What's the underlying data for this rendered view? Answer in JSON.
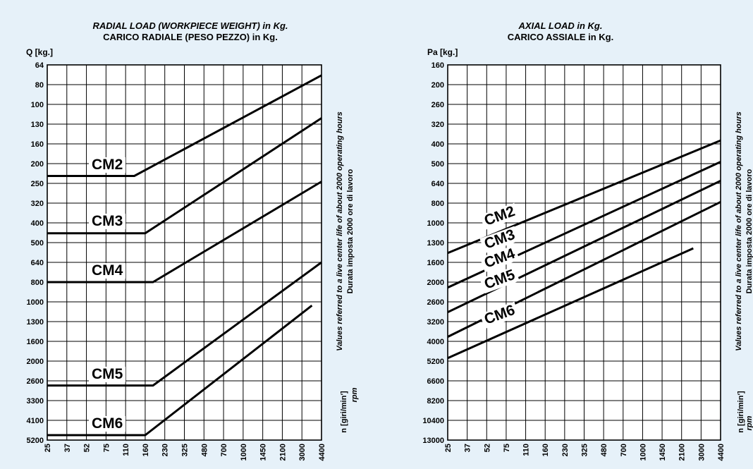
{
  "chart_data": [
    {
      "type": "line",
      "title": "RADIAL LOAD (WORKPIECE WEIGHT) in Kg.",
      "subtitle": "CARICO RADIALE (PESO PEZZO) in Kg.",
      "ylabel": "Q [kg.]",
      "y_ticks": [
        "64",
        "80",
        "100",
        "130",
        "160",
        "200",
        "250",
        "320",
        "400",
        "500",
        "640",
        "800",
        "1000",
        "1300",
        "1600",
        "2000",
        "2600",
        "3300",
        "4100",
        "5200"
      ],
      "x_ticks": [
        "25",
        "37",
        "52",
        "75",
        "110",
        "160",
        "230",
        "325",
        "480",
        "700",
        "1000",
        "1450",
        "2100",
        "3000",
        "4400"
      ],
      "side_note": [
        "Values referred to a live center life of about 2000 operating hours",
        "Durata imposta 2000 ore di lavoro"
      ],
      "rpm_label": [
        "n [giri/min']",
        "rpm"
      ],
      "series": [
        {
          "name": "CM2",
          "points": [
            [
              25,
              230
            ],
            [
              130,
              230
            ],
            [
              4400,
              72
            ]
          ]
        },
        {
          "name": "CM3",
          "points": [
            [
              25,
              450
            ],
            [
              160,
              450
            ],
            [
              4400,
              120
            ]
          ]
        },
        {
          "name": "CM4",
          "points": [
            [
              25,
              800
            ],
            [
              185,
              800
            ],
            [
              4400,
              245
            ]
          ]
        },
        {
          "name": "CM5",
          "points": [
            [
              25,
              2750
            ],
            [
              185,
              2750
            ],
            [
              4400,
              640
            ]
          ]
        },
        {
          "name": "CM6",
          "points": [
            [
              25,
              4900
            ],
            [
              160,
              4900
            ],
            [
              3650,
              1050
            ]
          ]
        }
      ]
    },
    {
      "type": "line",
      "title": "AXIAL LOAD in Kg.",
      "subtitle": "CARICO ASSIALE in Kg.",
      "ylabel": "Pa [kg.]",
      "y_ticks": [
        "160",
        "200",
        "260",
        "320",
        "400",
        "500",
        "640",
        "800",
        "1000",
        "1300",
        "1600",
        "2000",
        "2600",
        "3200",
        "4000",
        "5200",
        "6600",
        "8200",
        "10400",
        "13000"
      ],
      "x_ticks": [
        "25",
        "37",
        "52",
        "75",
        "110",
        "160",
        "230",
        "325",
        "480",
        "700",
        "1000",
        "1450",
        "2100",
        "3000",
        "4400"
      ],
      "side_note": [
        "Values referred to a live center life of about 2000 operating hours",
        "Durata imposta 2000 ore di lavoro"
      ],
      "rpm_label": [
        "n [giri/min']",
        "rpm"
      ],
      "series": [
        {
          "name": "CM2",
          "points": [
            [
              25,
              1450
            ],
            [
              4400,
              385
            ]
          ]
        },
        {
          "name": "CM3",
          "points": [
            [
              25,
              2150
            ],
            [
              4400,
              490
            ]
          ]
        },
        {
          "name": "CM4",
          "points": [
            [
              25,
              2900
            ],
            [
              4400,
              620
            ]
          ]
        },
        {
          "name": "CM5",
          "points": [
            [
              25,
              3800
            ],
            [
              4400,
              790
            ]
          ]
        },
        {
          "name": "CM6",
          "points": [
            [
              25,
              5000
            ],
            [
              2600,
              1380
            ]
          ]
        }
      ]
    }
  ]
}
